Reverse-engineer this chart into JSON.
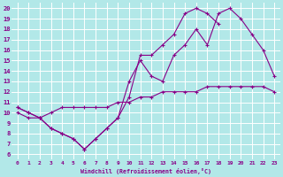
{
  "xlabel": "Windchill (Refroidissement éolien,°C)",
  "xlim": [
    -0.5,
    23.5
  ],
  "ylim": [
    5.5,
    20.5
  ],
  "xticks": [
    0,
    1,
    2,
    3,
    4,
    5,
    6,
    7,
    8,
    9,
    10,
    11,
    12,
    13,
    14,
    15,
    16,
    17,
    18,
    19,
    20,
    21,
    22,
    23
  ],
  "yticks": [
    6,
    7,
    8,
    9,
    10,
    11,
    12,
    13,
    14,
    15,
    16,
    17,
    18,
    19,
    20
  ],
  "background_color": "#b2e8e8",
  "grid_color": "#ffffff",
  "line_color": "#880088",
  "line1_x": [
    0,
    1,
    2,
    3,
    4,
    5,
    6,
    7,
    8,
    9,
    10,
    11,
    12,
    13,
    14,
    15,
    16,
    17,
    18,
    19,
    20,
    21,
    22,
    23
  ],
  "line1_y": [
    10.5,
    10.0,
    9.5,
    8.5,
    8.0,
    7.5,
    6.5,
    7.5,
    8.5,
    9.5,
    13.0,
    15.0,
    13.5,
    13.0,
    15.5,
    16.5,
    18.0,
    16.5,
    19.5,
    20.0,
    19.0,
    17.5,
    16.0,
    13.5
  ],
  "line2_x": [
    0,
    1,
    2,
    3,
    4,
    5,
    6,
    7,
    8,
    9,
    10,
    11,
    12,
    13,
    14,
    15,
    16,
    17,
    18,
    19,
    20,
    21,
    22,
    23
  ],
  "line2_y": [
    10.5,
    10.0,
    9.5,
    8.5,
    8.0,
    7.5,
    6.5,
    7.5,
    8.5,
    9.5,
    11.5,
    15.5,
    15.5,
    16.5,
    17.5,
    19.5,
    20.0,
    19.5,
    18.5,
    null,
    null,
    null,
    null,
    null
  ],
  "line3_x": [
    0,
    1,
    2,
    3,
    4,
    5,
    6,
    7,
    8,
    9,
    10,
    11,
    12,
    13,
    14,
    15,
    16,
    17,
    18,
    19,
    20,
    21,
    22,
    23
  ],
  "line3_y": [
    10.0,
    9.5,
    9.5,
    10.0,
    10.5,
    10.5,
    10.5,
    10.5,
    10.5,
    11.0,
    11.0,
    11.5,
    11.5,
    12.0,
    12.0,
    12.0,
    12.0,
    12.5,
    12.5,
    12.5,
    12.5,
    12.5,
    12.5,
    12.0
  ]
}
